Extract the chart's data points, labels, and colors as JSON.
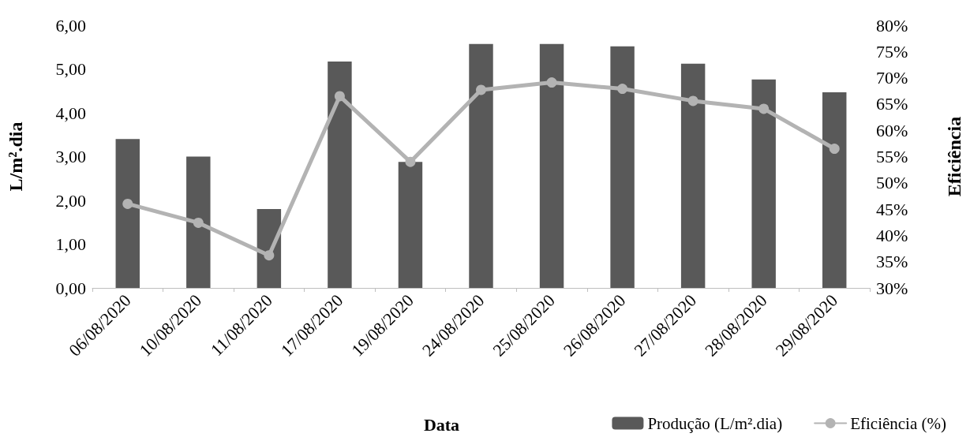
{
  "chart_data": {
    "type": "bar",
    "categories": [
      "06/08/2020",
      "10/08/2020",
      "11/08/2020",
      "17/08/2020",
      "19/08/2020",
      "24/08/2020",
      "25/08/2020",
      "26/08/2020",
      "27/08/2020",
      "28/08/2020",
      "29/08/2020"
    ],
    "series": [
      {
        "name": "Produção (L/m².dia)",
        "color": "#595959",
        "values": [
          3.4,
          3.0,
          1.8,
          5.17,
          2.88,
          5.57,
          5.57,
          5.52,
          5.12,
          4.76,
          4.47
        ]
      },
      {
        "name": "Eficiência (%)",
        "type": "line",
        "axis": "y2",
        "color": "#b3b3b3",
        "values": [
          46.0,
          42.4,
          36.2,
          66.5,
          54.0,
          67.7,
          69.1,
          67.9,
          65.6,
          64.1,
          56.5
        ]
      }
    ],
    "xlabel": "Data",
    "ylabel": "L/m².dia",
    "y2label": "Eficiência",
    "ylim": [
      0,
      6
    ],
    "yticks": [
      {
        "value": 0,
        "label": "0,00"
      },
      {
        "value": 1,
        "label": "1,00"
      },
      {
        "value": 2,
        "label": "2,00"
      },
      {
        "value": 3,
        "label": "3,00"
      },
      {
        "value": 4,
        "label": "4,00"
      },
      {
        "value": 5,
        "label": "5,00"
      },
      {
        "value": 6,
        "label": "6,00"
      }
    ],
    "y2lim": [
      30,
      80
    ],
    "y2ticks": [
      {
        "value": 30,
        "label": "30%"
      },
      {
        "value": 35,
        "label": "35%"
      },
      {
        "value": 40,
        "label": "40%"
      },
      {
        "value": 45,
        "label": "45%"
      },
      {
        "value": 50,
        "label": "50%"
      },
      {
        "value": 55,
        "label": "55%"
      },
      {
        "value": 60,
        "label": "60%"
      },
      {
        "value": 65,
        "label": "65%"
      },
      {
        "value": 70,
        "label": "70%"
      },
      {
        "value": 75,
        "label": "75%"
      },
      {
        "value": 80,
        "label": "80%"
      }
    ],
    "grid": false,
    "legend": "bottom right",
    "marker": "circle",
    "line_style": "solid"
  }
}
